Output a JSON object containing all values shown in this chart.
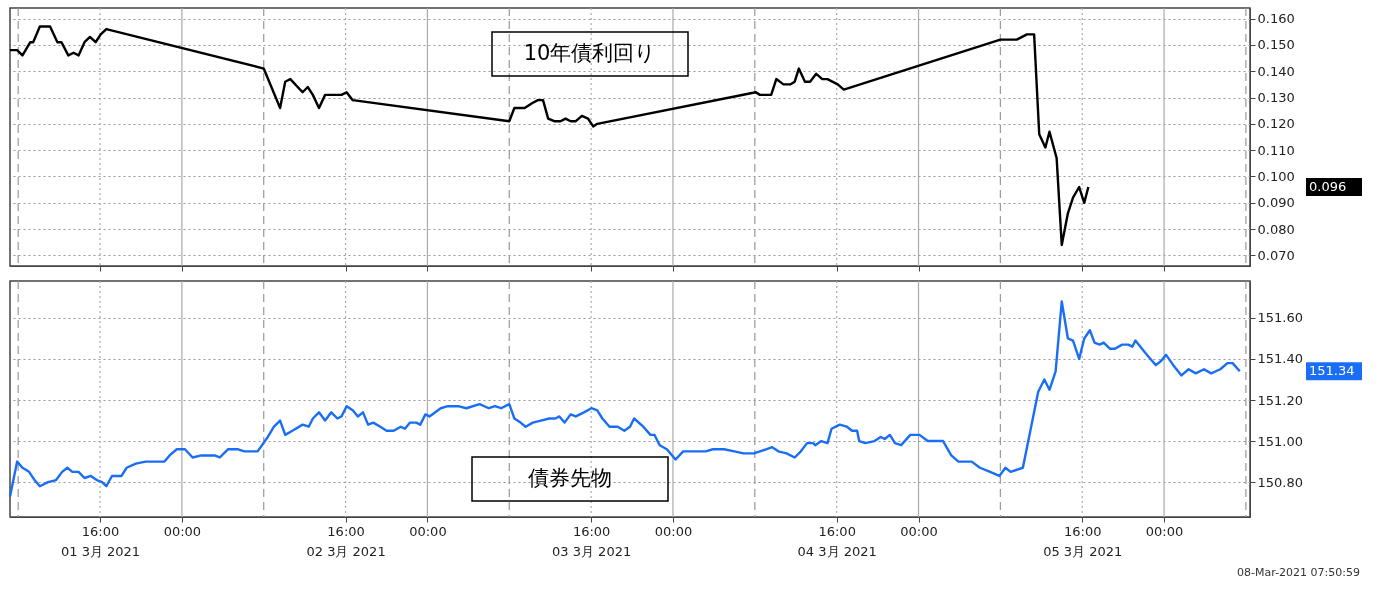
{
  "chart_data": [
    {
      "type": "line",
      "title": "10年債利回り",
      "tick_labels": "y",
      "grid": "y",
      "x": [
        "2021-03-01T07:12",
        "2021-03-01T07:54",
        "2021-03-01T08:25",
        "2021-03-01T09:11",
        "2021-03-01T09:28",
        "2021-03-01T10:07",
        "2021-03-01T11:07",
        "2021-03-01T11:50",
        "2021-03-01T12:14",
        "2021-03-01T12:54",
        "2021-03-01T13:25",
        "2021-03-01T13:54",
        "2021-03-01T14:29",
        "2021-03-01T15:01",
        "2021-03-01T15:34",
        "2021-03-01T16:04",
        "2021-03-01T16:37",
        "2021-03-02T08:00",
        "2021-03-02T09:36",
        "2021-03-02T10:06",
        "2021-03-02T10:36",
        "2021-03-02T11:48",
        "2021-03-02T12:18",
        "2021-03-02T12:48",
        "2021-03-02T13:24",
        "2021-03-02T14:00",
        "2021-03-02T15:36",
        "2021-03-02T16:06",
        "2021-03-02T16:42",
        "2021-03-03T08:00",
        "2021-03-03T08:30",
        "2021-03-03T09:30",
        "2021-03-03T10:18",
        "2021-03-03T10:48",
        "2021-03-03T11:18",
        "2021-03-03T11:48",
        "2021-03-03T12:24",
        "2021-03-03T13:00",
        "2021-03-03T13:30",
        "2021-03-03T14:00",
        "2021-03-03T14:30",
        "2021-03-03T15:06",
        "2021-03-03T15:42",
        "2021-03-03T16:12",
        "2021-03-03T16:36",
        "2021-03-04T08:06",
        "2021-03-04T08:30",
        "2021-03-04T09:36",
        "2021-03-04T10:06",
        "2021-03-04T10:48",
        "2021-03-04T11:30",
        "2021-03-04T11:54",
        "2021-03-04T12:18",
        "2021-03-04T12:54",
        "2021-03-04T13:24",
        "2021-03-04T14:00",
        "2021-03-04T14:36",
        "2021-03-04T15:06",
        "2021-03-04T16:06",
        "2021-03-04T16:42",
        "2021-03-05T08:00",
        "2021-03-05T09:36",
        "2021-03-05T10:36",
        "2021-03-05T11:18",
        "2021-03-05T11:48",
        "2021-03-05T12:24",
        "2021-03-05T12:48",
        "2021-03-05T13:30",
        "2021-03-05T14:00",
        "2021-03-05T14:36",
        "2021-03-05T15:06",
        "2021-03-05T15:42",
        "2021-03-05T16:12",
        "2021-03-05T16:36"
      ],
      "series": [
        {
          "color": "#000000",
          "values": [
            0.148,
            0.148,
            0.146,
            0.151,
            0.151,
            0.157,
            0.157,
            0.151,
            0.151,
            0.146,
            0.147,
            0.146,
            0.151,
            0.153,
            0.151,
            0.154,
            0.156,
            0.141,
            0.126,
            0.136,
            0.137,
            0.132,
            0.134,
            0.131,
            0.126,
            0.131,
            0.131,
            0.132,
            0.129,
            0.121,
            0.126,
            0.126,
            0.128,
            0.129,
            0.129,
            0.122,
            0.121,
            0.121,
            0.122,
            0.121,
            0.121,
            0.123,
            0.122,
            0.119,
            0.12,
            0.132,
            0.131,
            0.131,
            0.137,
            0.135,
            0.135,
            0.136,
            0.141,
            0.136,
            0.136,
            0.139,
            0.137,
            0.137,
            0.135,
            0.133,
            0.152,
            0.152,
            0.154,
            0.154,
            0.116,
            0.111,
            0.117,
            0.107,
            0.074,
            0.086,
            0.092,
            0.096,
            0.09,
            0.096
          ]
        }
      ],
      "xlim": [
        "2021-03-01T07:12",
        "2021-03-06T08:24"
      ],
      "xticks": [
        {
          "value": "2021-03-01T16:00",
          "label": null
        },
        {
          "value": "2021-03-02T00:00",
          "label": null
        },
        {
          "value": "2021-03-02T16:00",
          "label": null
        },
        {
          "value": "2021-03-03T00:00",
          "label": null
        },
        {
          "value": "2021-03-03T16:00",
          "label": null
        },
        {
          "value": "2021-03-04T00:00",
          "label": null
        },
        {
          "value": "2021-03-04T16:00",
          "label": null
        },
        {
          "value": "2021-03-05T00:00",
          "label": null
        },
        {
          "value": "2021-03-05T16:00",
          "label": null
        },
        {
          "value": "2021-03-06T00:00",
          "label": null
        }
      ],
      "ylim": [
        0.066,
        0.164
      ],
      "yticks": [
        {
          "value": 0.07,
          "label": "0.070"
        },
        {
          "value": 0.08,
          "label": "0.080"
        },
        {
          "value": 0.09,
          "label": "0.090"
        },
        {
          "value": 0.1,
          "label": "0.100"
        },
        {
          "value": 0.11,
          "label": "0.110"
        },
        {
          "value": 0.12,
          "label": "0.120"
        },
        {
          "value": 0.13,
          "label": "0.130"
        },
        {
          "value": 0.14,
          "label": "0.140"
        },
        {
          "value": 0.15,
          "label": "0.150"
        },
        {
          "value": 0.16,
          "label": "0.160"
        }
      ],
      "ref_lines": [
        {
          "axis": "x",
          "value": "2021-03-01T08:00",
          "line_style": "dashed",
          "color": "#999999"
        },
        {
          "axis": "x",
          "value": "2021-03-02T08:00",
          "line_style": "dashed",
          "color": "#999999"
        },
        {
          "axis": "x",
          "value": "2021-03-03T08:00",
          "line_style": "dashed",
          "color": "#999999"
        },
        {
          "axis": "x",
          "value": "2021-03-04T08:00",
          "line_style": "dashed",
          "color": "#999999"
        },
        {
          "axis": "x",
          "value": "2021-03-05T08:00",
          "line_style": "dashed",
          "color": "#999999"
        },
        {
          "axis": "x",
          "value": "2021-03-06T08:00",
          "line_style": "dashed",
          "color": "#999999"
        },
        {
          "axis": "x",
          "value": "2021-03-02T00:00",
          "line_style": "solid",
          "color": "#aaaaaa"
        },
        {
          "axis": "x",
          "value": "2021-03-03T00:00",
          "line_style": "solid",
          "color": "#aaaaaa"
        },
        {
          "axis": "x",
          "value": "2021-03-04T00:00",
          "line_style": "solid",
          "color": "#aaaaaa"
        },
        {
          "axis": "x",
          "value": "2021-03-05T00:00",
          "line_style": "solid",
          "color": "#aaaaaa"
        },
        {
          "axis": "x",
          "value": "2021-03-06T00:00",
          "line_style": "solid",
          "color": "#aaaaaa"
        },
        {
          "axis": "x",
          "value": "2021-03-01T16:00",
          "line_style": "dotted",
          "color": "#aaaaaa"
        },
        {
          "axis": "x",
          "value": "2021-03-02T16:00",
          "line_style": "dotted",
          "color": "#aaaaaa"
        },
        {
          "axis": "x",
          "value": "2021-03-03T16:00",
          "line_style": "dotted",
          "color": "#aaaaaa"
        },
        {
          "axis": "x",
          "value": "2021-03-04T16:00",
          "line_style": "dotted",
          "color": "#aaaaaa"
        },
        {
          "axis": "x",
          "value": "2021-03-05T16:00",
          "line_style": "dotted",
          "color": "#aaaaaa"
        }
      ],
      "annotations": [
        "0.096"
      ]
    },
    {
      "type": "line",
      "title": "債券先物",
      "grid": "y",
      "x": [
        "2021-03-01T07:12",
        "2021-03-01T07:54",
        "2021-03-01T08:25",
        "2021-03-01T09:04",
        "2021-03-01T09:36",
        "2021-03-01T10:07",
        "2021-03-01T10:55",
        "2021-03-01T11:42",
        "2021-03-01T12:18",
        "2021-03-01T12:48",
        "2021-03-01T13:18",
        "2021-03-01T13:54",
        "2021-03-01T14:29",
        "2021-03-01T15:06",
        "2021-03-01T15:41",
        "2021-03-01T16:12",
        "2021-03-01T16:37",
        "2021-03-01T17:10",
        "2021-03-01T18:06",
        "2021-03-01T18:36",
        "2021-03-01T19:30",
        "2021-03-01T20:27",
        "2021-03-01T21:12",
        "2021-03-01T21:42",
        "2021-03-01T22:18",
        "2021-03-01T22:48",
        "2021-03-01T23:30",
        "2021-03-02T00:18",
        "2021-03-02T01:03",
        "2021-03-02T01:54",
        "2021-03-02T03:12",
        "2021-03-02T03:42",
        "2021-03-02T04:30",
        "2021-03-02T05:30",
        "2021-03-02T06:06",
        "2021-03-02T07:24",
        "2021-03-02T08:24",
        "2021-03-02T09:00",
        "2021-03-02T09:36",
        "2021-03-02T10:06",
        "2021-03-02T10:48",
        "2021-03-02T11:48",
        "2021-03-02T12:24",
        "2021-03-02T12:48",
        "2021-03-02T13:24",
        "2021-03-02T14:00",
        "2021-03-02T14:36",
        "2021-03-02T15:12",
        "2021-03-02T15:36",
        "2021-03-02T16:06",
        "2021-03-02T16:42",
        "2021-03-02T17:12",
        "2021-03-02T17:42",
        "2021-03-02T18:12",
        "2021-03-02T18:42",
        "2021-03-02T19:24",
        "2021-03-02T20:00",
        "2021-03-02T20:42",
        "2021-03-02T21:24",
        "2021-03-02T21:48",
        "2021-03-02T22:18",
        "2021-03-02T22:54",
        "2021-03-02T23:18",
        "2021-03-02T23:48",
        "2021-03-03T00:12",
        "2021-03-03T01:18",
        "2021-03-03T02:00",
        "2021-03-03T03:00",
        "2021-03-03T03:48",
        "2021-03-03T05:06",
        "2021-03-03T06:00",
        "2021-03-03T06:36",
        "2021-03-03T07:12",
        "2021-03-03T08:00",
        "2021-03-03T08:30",
        "2021-03-03T09:06",
        "2021-03-03T09:36",
        "2021-03-03T10:18",
        "2021-03-03T11:06",
        "2021-03-03T11:54",
        "2021-03-03T12:30",
        "2021-03-03T12:54",
        "2021-03-03T13:24",
        "2021-03-03T14:00",
        "2021-03-03T14:30",
        "2021-03-03T15:18",
        "2021-03-03T16:02",
        "2021-03-03T16:36",
        "2021-03-03T17:06",
        "2021-03-03T17:48",
        "2021-03-03T18:36",
        "2021-03-03T19:15",
        "2021-03-03T19:48",
        "2021-03-03T20:12",
        "2021-03-03T21:06",
        "2021-03-03T21:48",
        "2021-03-03T22:12",
        "2021-03-03T22:42",
        "2021-03-03T23:24",
        "2021-03-04T00:15",
        "2021-03-04T01:00",
        "2021-03-04T02:00",
        "2021-03-04T03:12",
        "2021-03-04T03:54",
        "2021-03-04T05:00",
        "2021-03-04T06:00",
        "2021-03-04T06:54",
        "2021-03-04T07:54",
        "2021-03-04T08:30",
        "2021-03-04T09:06",
        "2021-03-04T09:42",
        "2021-03-04T10:18",
        "2021-03-04T11:06",
        "2021-03-04T11:54",
        "2021-03-04T12:30",
        "2021-03-04T13:06",
        "2021-03-04T13:42",
        "2021-03-04T13:54",
        "2021-03-04T14:30",
        "2021-03-04T15:06",
        "2021-03-04T15:30",
        "2021-03-04T16:18",
        "2021-03-04T17:00",
        "2021-03-04T17:30",
        "2021-03-04T18:00",
        "2021-03-04T18:12",
        "2021-03-04T18:48",
        "2021-03-04T19:42",
        "2021-03-04T20:18",
        "2021-03-04T20:42",
        "2021-03-04T21:12",
        "2021-03-04T21:42",
        "2021-03-04T22:18",
        "2021-03-04T23:12",
        "2021-03-05T00:06",
        "2021-03-05T00:54",
        "2021-03-05T02:24",
        "2021-03-05T03:12",
        "2021-03-05T03:54",
        "2021-03-05T05:12",
        "2021-03-05T06:00",
        "2021-03-05T07:00",
        "2021-03-05T07:54",
        "2021-03-05T08:30",
        "2021-03-05T09:00",
        "2021-03-05T10:12",
        "2021-03-05T11:42",
        "2021-03-05T12:18",
        "2021-03-05T12:48",
        "2021-03-05T13:24",
        "2021-03-05T14:00",
        "2021-03-05T14:36",
        "2021-03-05T15:06",
        "2021-03-05T15:42",
        "2021-03-05T16:12",
        "2021-03-05T16:45",
        "2021-03-05T17:12",
        "2021-03-05T17:42",
        "2021-03-05T18:06",
        "2021-03-05T18:42",
        "2021-03-05T19:12",
        "2021-03-05T19:54",
        "2021-03-05T20:30",
        "2021-03-05T20:54",
        "2021-03-05T21:12",
        "2021-03-05T22:00",
        "2021-03-05T22:30",
        "2021-03-05T23:12",
        "2021-03-05T23:42",
        "2021-03-06T00:12",
        "2021-03-06T00:54",
        "2021-03-06T01:42",
        "2021-03-06T02:24",
        "2021-03-06T03:06",
        "2021-03-06T03:54",
        "2021-03-06T04:36",
        "2021-03-06T05:30",
        "2021-03-06T06:12",
        "2021-03-06T06:42",
        "2021-03-06T07:24"
      ],
      "series": [
        {
          "color": "#1a6ef5",
          "values": [
            150.73,
            150.9,
            150.87,
            150.85,
            150.81,
            150.78,
            150.8,
            150.81,
            150.85,
            150.87,
            150.85,
            150.85,
            150.82,
            150.83,
            150.81,
            150.8,
            150.78,
            150.83,
            150.83,
            150.87,
            150.89,
            150.9,
            150.9,
            150.9,
            150.9,
            150.93,
            150.96,
            150.96,
            150.92,
            150.93,
            150.93,
            150.92,
            150.96,
            150.96,
            150.95,
            150.95,
            151.02,
            151.07,
            151.1,
            151.03,
            151.05,
            151.08,
            151.07,
            151.11,
            151.14,
            151.1,
            151.14,
            151.11,
            151.12,
            151.17,
            151.15,
            151.12,
            151.14,
            151.08,
            151.09,
            151.07,
            151.05,
            151.05,
            151.07,
            151.06,
            151.09,
            151.09,
            151.08,
            151.13,
            151.12,
            151.16,
            151.17,
            151.17,
            151.16,
            151.18,
            151.16,
            151.17,
            151.16,
            151.18,
            151.11,
            151.09,
            151.07,
            151.09,
            151.1,
            151.11,
            151.11,
            151.12,
            151.09,
            151.13,
            151.12,
            151.14,
            151.16,
            151.15,
            151.11,
            151.07,
            151.07,
            151.05,
            151.07,
            151.11,
            151.07,
            151.03,
            151.03,
            150.98,
            150.96,
            150.91,
            150.95,
            150.95,
            150.95,
            150.96,
            150.96,
            150.95,
            150.94,
            150.94,
            150.95,
            150.96,
            150.97,
            150.95,
            150.94,
            150.92,
            150.95,
            150.99,
            150.99,
            150.98,
            151.0,
            150.99,
            151.06,
            151.08,
            151.07,
            151.05,
            151.05,
            151.0,
            150.99,
            151.0,
            151.02,
            151.01,
            151.03,
            150.99,
            150.98,
            151.03,
            151.03,
            151.0,
            151.0,
            150.93,
            150.9,
            150.9,
            150.87,
            150.85,
            150.83,
            150.87,
            150.85,
            150.87,
            151.24,
            151.3,
            151.25,
            151.34,
            151.68,
            151.5,
            151.49,
            151.4,
            151.5,
            151.54,
            151.48,
            151.47,
            151.48,
            151.45,
            151.45,
            151.47,
            151.47,
            151.46,
            151.49,
            151.44,
            151.41,
            151.37,
            151.39,
            151.42,
            151.37,
            151.32,
            151.35,
            151.33,
            151.35,
            151.33,
            151.35,
            151.38,
            151.38,
            151.34
          ]
        }
      ],
      "xlim": [
        "2021-03-01T07:12",
        "2021-03-06T08:24"
      ],
      "xticks": [
        {
          "value": "2021-03-01T16:00",
          "label": "16:00\n01 3月 2021"
        },
        {
          "value": "2021-03-02T00:00",
          "label": "00:00"
        },
        {
          "value": "2021-03-02T16:00",
          "label": "16:00\n02 3月 2021"
        },
        {
          "value": "2021-03-03T00:00",
          "label": "00:00"
        },
        {
          "value": "2021-03-03T16:00",
          "label": "16:00\n03 3月 2021"
        },
        {
          "value": "2021-03-04T00:00",
          "label": "00:00"
        },
        {
          "value": "2021-03-04T16:00",
          "label": "16:00\n04 3月 2021"
        },
        {
          "value": "2021-03-05T00:00",
          "label": "00:00"
        },
        {
          "value": "2021-03-05T16:00",
          "label": "16:00\n05 3月 2021"
        },
        {
          "value": "2021-03-06T00:00",
          "label": "00:00"
        }
      ],
      "ylim": [
        150.63,
        151.78
      ],
      "yticks": [
        {
          "value": 150.8,
          "label": "150.80"
        },
        {
          "value": 151.0,
          "label": "151.00"
        },
        {
          "value": 151.2,
          "label": "151.20"
        },
        {
          "value": 151.4,
          "label": "151.40"
        },
        {
          "value": 151.6,
          "label": "151.60"
        }
      ],
      "ref_lines": [
        {
          "axis": "x",
          "value": "2021-03-01T08:00",
          "line_style": "dashed",
          "color": "#999999"
        },
        {
          "axis": "x",
          "value": "2021-03-02T08:00",
          "line_style": "dashed",
          "color": "#999999"
        },
        {
          "axis": "x",
          "value": "2021-03-03T08:00",
          "line_style": "dashed",
          "color": "#999999"
        },
        {
          "axis": "x",
          "value": "2021-03-04T08:00",
          "line_style": "dashed",
          "color": "#999999"
        },
        {
          "axis": "x",
          "value": "2021-03-05T08:00",
          "line_style": "dashed",
          "color": "#999999"
        },
        {
          "axis": "x",
          "value": "2021-03-06T08:00",
          "line_style": "dashed",
          "color": "#999999"
        },
        {
          "axis": "x",
          "value": "2021-03-02T00:00",
          "line_style": "solid",
          "color": "#aaaaaa"
        },
        {
          "axis": "x",
          "value": "2021-03-03T00:00",
          "line_style": "solid",
          "color": "#aaaaaa"
        },
        {
          "axis": "x",
          "value": "2021-03-04T00:00",
          "line_style": "solid",
          "color": "#aaaaaa"
        },
        {
          "axis": "x",
          "value": "2021-03-05T00:00",
          "line_style": "solid",
          "color": "#aaaaaa"
        },
        {
          "axis": "x",
          "value": "2021-03-06T00:00",
          "line_style": "solid",
          "color": "#aaaaaa"
        },
        {
          "axis": "x",
          "value": "2021-03-01T16:00",
          "line_style": "dotted",
          "color": "#aaaaaa"
        },
        {
          "axis": "x",
          "value": "2021-03-02T16:00",
          "line_style": "dotted",
          "color": "#aaaaaa"
        },
        {
          "axis": "x",
          "value": "2021-03-03T16:00",
          "line_style": "dotted",
          "color": "#aaaaaa"
        },
        {
          "axis": "x",
          "value": "2021-03-04T16:00",
          "line_style": "dotted",
          "color": "#aaaaaa"
        },
        {
          "axis": "x",
          "value": "2021-03-05T16:00",
          "line_style": "dotted",
          "color": "#aaaaaa"
        }
      ],
      "annotations": [
        "151.34",
        "08-Mar-2021 07:50:59"
      ]
    }
  ]
}
